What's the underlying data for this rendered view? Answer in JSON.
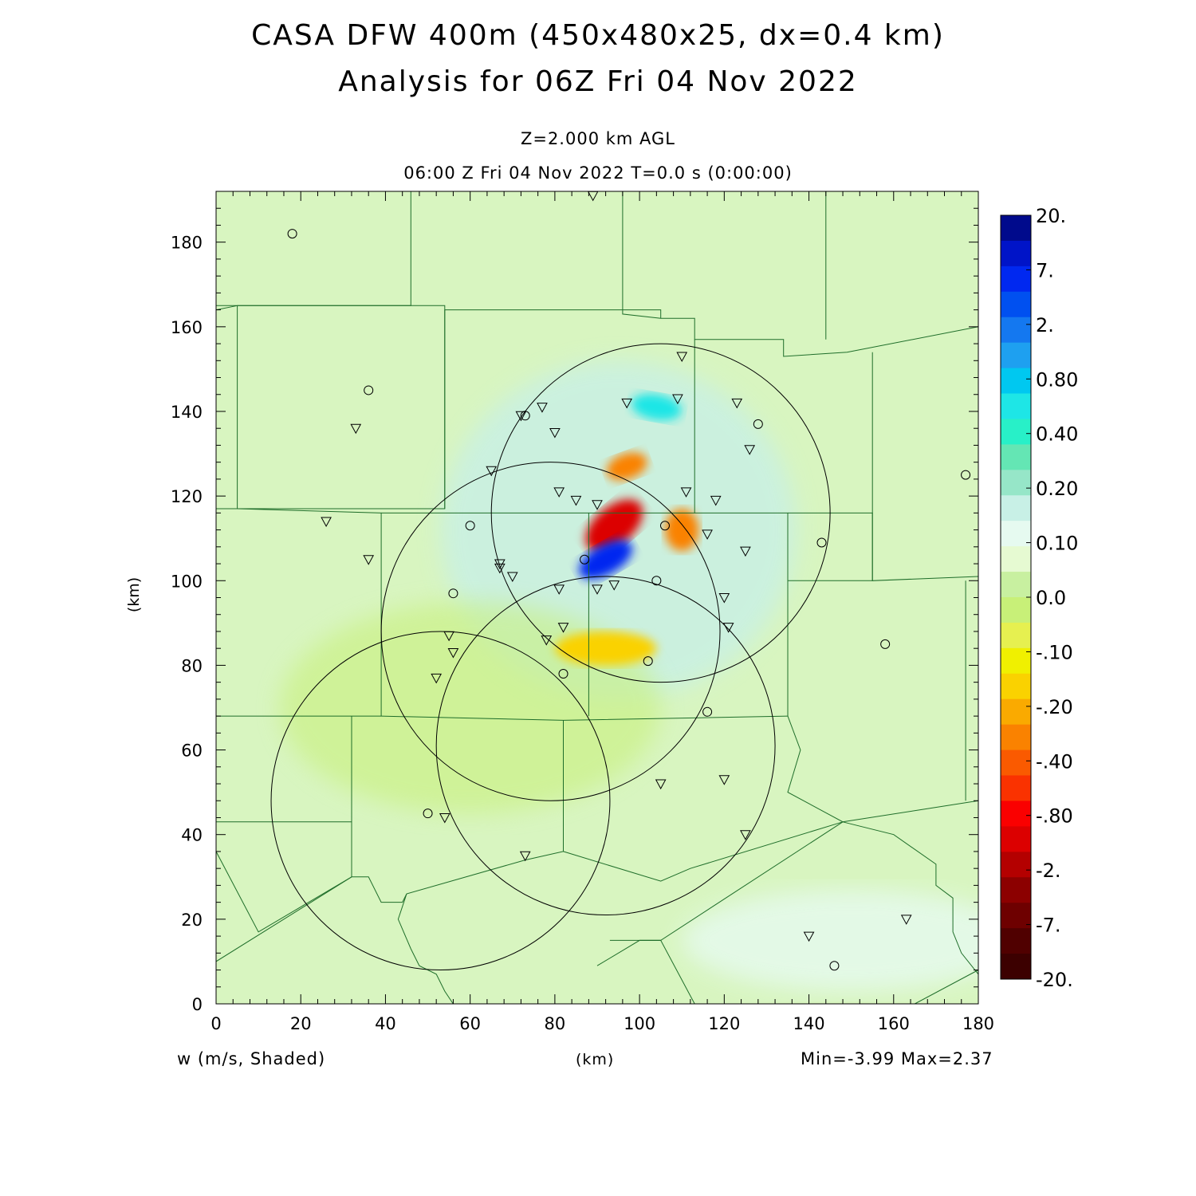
{
  "title": {
    "line1": "CASA DFW 400m (450x480x25, dx=0.4 km)",
    "line2": "Analysis for 06Z Fri 04 Nov 2022"
  },
  "subtitle": {
    "level": "Z=2.000 km AGL",
    "time": "06:00 Z Fri 04 Nov 2022    T=0.0 s (0:00:00)"
  },
  "footer": {
    "variable": "w (m/s, Shaded)",
    "x_unit": "(km)",
    "minmax": "Min=-3.99 Max=2.37"
  },
  "y_unit": "(km)",
  "axes": {
    "xlim": [
      0,
      180
    ],
    "ylim": [
      0,
      192
    ],
    "x_ticks": [
      0,
      20,
      40,
      60,
      80,
      100,
      120,
      140,
      160,
      180
    ],
    "y_ticks": [
      0,
      20,
      40,
      60,
      80,
      100,
      120,
      140,
      160,
      180
    ]
  },
  "colorbar": {
    "labels": [
      "20.",
      "7.",
      "2.",
      "0.80",
      "0.40",
      "0.20",
      "0.10",
      "0.0",
      "-.10",
      "-.20",
      "-.40",
      "-.80",
      "-2.",
      "-7.",
      "-20."
    ],
    "colors": [
      "#000a8c",
      "#0014c8",
      "#0028f0",
      "#0050f0",
      "#1478f0",
      "#1ea0f0",
      "#00c8f0",
      "#1ee6e6",
      "#28f0c8",
      "#64e6b4",
      "#96e6c8",
      "#c8f0e6",
      "#e6faf0",
      "#e6fad2",
      "#c8f0a0",
      "#c8f078",
      "#e6f050",
      "#f0f000",
      "#fad200",
      "#faaa00",
      "#fa8200",
      "#fa5a00",
      "#fa3200",
      "#fa0000",
      "#dc0000",
      "#b40000",
      "#8c0000",
      "#6e0000",
      "#500000",
      "#3c0000"
    ]
  },
  "radar_rings_km": [
    {
      "x": 105,
      "y": 116,
      "r": 40
    },
    {
      "x": 79,
      "y": 88,
      "r": 40
    },
    {
      "x": 92,
      "y": 61,
      "r": 40
    },
    {
      "x": 53,
      "y": 48,
      "r": 40
    }
  ],
  "stations_triangle": [
    [
      89,
      191
    ],
    [
      110,
      153
    ],
    [
      97,
      142
    ],
    [
      109,
      143
    ],
    [
      123,
      142
    ],
    [
      77,
      141
    ],
    [
      72,
      139
    ],
    [
      80,
      135
    ],
    [
      126,
      131
    ],
    [
      65,
      126
    ],
    [
      81,
      121
    ],
    [
      85,
      119
    ],
    [
      90,
      118
    ],
    [
      111,
      121
    ],
    [
      118,
      119
    ],
    [
      116,
      111
    ],
    [
      26,
      114
    ],
    [
      36,
      105
    ],
    [
      67,
      104
    ],
    [
      67,
      103
    ],
    [
      70,
      101
    ],
    [
      125,
      107
    ],
    [
      94,
      99
    ],
    [
      90,
      98
    ],
    [
      81,
      98
    ],
    [
      120,
      96
    ],
    [
      82,
      89
    ],
    [
      121,
      89
    ],
    [
      78,
      86
    ],
    [
      55,
      87
    ],
    [
      56,
      83
    ],
    [
      52,
      77
    ],
    [
      33,
      136
    ],
    [
      105,
      52
    ],
    [
      120,
      53
    ],
    [
      54,
      44
    ],
    [
      73,
      35
    ],
    [
      125,
      40
    ],
    [
      140,
      16
    ],
    [
      163,
      20
    ]
  ],
  "stations_circle": [
    [
      18,
      182
    ],
    [
      36,
      145
    ],
    [
      73,
      139
    ],
    [
      128,
      137
    ],
    [
      177,
      125
    ],
    [
      60,
      113
    ],
    [
      106,
      113
    ],
    [
      143,
      109
    ],
    [
      87,
      105
    ],
    [
      104,
      100
    ],
    [
      56,
      97
    ],
    [
      158,
      85
    ],
    [
      102,
      81
    ],
    [
      82,
      78
    ],
    [
      116,
      69
    ],
    [
      50,
      45
    ],
    [
      146,
      9
    ]
  ],
  "county_lines_km": [
    [
      [
        0,
        165
      ],
      [
        46,
        165
      ],
      [
        46,
        192
      ]
    ],
    [
      [
        0,
        164
      ],
      [
        5,
        165
      ],
      [
        5,
        117
      ],
      [
        0,
        117
      ]
    ],
    [
      [
        5,
        165
      ],
      [
        54,
        165
      ],
      [
        54,
        117
      ],
      [
        5,
        117
      ]
    ],
    [
      [
        54,
        164
      ],
      [
        105,
        164
      ],
      [
        105,
        162
      ]
    ],
    [
      [
        96,
        192
      ],
      [
        96,
        163
      ],
      [
        105,
        162
      ],
      [
        113,
        162
      ],
      [
        113,
        157
      ],
      [
        134,
        157
      ],
      [
        134,
        153
      ],
      [
        149,
        154
      ],
      [
        180,
        160
      ]
    ],
    [
      [
        144,
        192
      ],
      [
        144,
        157
      ]
    ],
    [
      [
        54,
        164
      ],
      [
        54,
        117
      ]
    ],
    [
      [
        5,
        117
      ],
      [
        39,
        116
      ],
      [
        39,
        68
      ]
    ],
    [
      [
        39,
        116
      ],
      [
        88,
        116
      ],
      [
        88,
        68
      ]
    ],
    [
      [
        88,
        116
      ],
      [
        113,
        116
      ],
      [
        113,
        157
      ]
    ],
    [
      [
        113,
        116
      ],
      [
        135,
        116
      ],
      [
        135,
        68
      ]
    ],
    [
      [
        135,
        116
      ],
      [
        155,
        116
      ],
      [
        155,
        100
      ],
      [
        135,
        100
      ]
    ],
    [
      [
        155,
        154
      ],
      [
        155,
        100
      ],
      [
        180,
        101
      ]
    ],
    [
      [
        0,
        68
      ],
      [
        39,
        68
      ],
      [
        82,
        67
      ],
      [
        135,
        68
      ]
    ],
    [
      [
        82,
        67
      ],
      [
        82,
        36
      ],
      [
        73,
        34
      ],
      [
        45,
        26
      ],
      [
        44,
        24
      ],
      [
        39,
        24
      ],
      [
        36,
        30
      ],
      [
        32,
        30
      ],
      [
        32,
        43
      ],
      [
        0,
        43
      ]
    ],
    [
      [
        32,
        43
      ],
      [
        32,
        68
      ]
    ],
    [
      [
        0,
        36
      ],
      [
        10,
        17
      ],
      [
        32,
        30
      ]
    ],
    [
      [
        0,
        10
      ],
      [
        32,
        30
      ]
    ],
    [
      [
        45,
        26
      ],
      [
        43,
        20
      ],
      [
        46,
        13
      ],
      [
        48,
        9
      ],
      [
        52,
        7
      ],
      [
        54,
        3
      ],
      [
        56,
        0
      ]
    ],
    [
      [
        82,
        36
      ],
      [
        105,
        29
      ],
      [
        112,
        32
      ],
      [
        148,
        43
      ],
      [
        135,
        50
      ],
      [
        138,
        60
      ],
      [
        135,
        68
      ]
    ],
    [
      [
        148,
        43
      ],
      [
        180,
        48
      ]
    ],
    [
      [
        177,
        100
      ],
      [
        177,
        48
      ]
    ],
    [
      [
        148,
        43
      ],
      [
        160,
        40
      ],
      [
        170,
        33
      ],
      [
        170,
        28
      ],
      [
        174,
        25
      ],
      [
        174,
        17
      ],
      [
        176,
        12
      ],
      [
        180,
        7
      ]
    ],
    [
      [
        90,
        9
      ],
      [
        100,
        15
      ],
      [
        105,
        15
      ],
      [
        113,
        0
      ]
    ],
    [
      [
        105,
        15
      ],
      [
        100,
        15
      ]
    ],
    [
      [
        93,
        15
      ],
      [
        105,
        15
      ],
      [
        148,
        43
      ]
    ],
    [
      [
        82,
        67
      ],
      [
        82,
        36
      ]
    ],
    [
      [
        165,
        0
      ],
      [
        180,
        8
      ]
    ]
  ],
  "w_features": [
    {
      "x": 94,
      "y": 113,
      "rx": 8,
      "ry": 4.5,
      "angle": -40,
      "w": -2.5
    },
    {
      "x": 92,
      "y": 105,
      "rx": 7,
      "ry": 3.5,
      "angle": -30,
      "w": 1.5
    },
    {
      "x": 97,
      "y": 127,
      "rx": 5,
      "ry": 3,
      "angle": -20,
      "w": -0.6
    },
    {
      "x": 110,
      "y": 112,
      "rx": 4,
      "ry": 5,
      "angle": 0,
      "w": -0.5
    },
    {
      "x": 92,
      "y": 84,
      "rx": 12,
      "ry": 4,
      "angle": 0,
      "w": -0.2
    },
    {
      "x": 104,
      "y": 141,
      "rx": 6,
      "ry": 3,
      "angle": 10,
      "w": 0.2
    }
  ]
}
